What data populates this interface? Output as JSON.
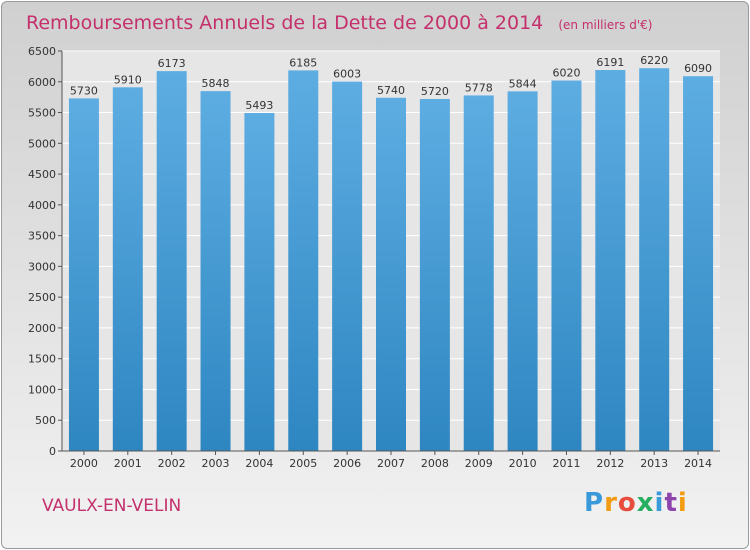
{
  "chart_data": {
    "type": "bar",
    "title": "Remboursements Annuels de la Dette de 2000 à 2014",
    "subtitle": "(en milliers d'€)",
    "categories": [
      "2000",
      "2001",
      "2002",
      "2003",
      "2004",
      "2005",
      "2006",
      "2007",
      "2008",
      "2009",
      "2010",
      "2011",
      "2012",
      "2013",
      "2014"
    ],
    "values": [
      5730,
      5910,
      6173,
      5848,
      5493,
      6185,
      6003,
      5740,
      5720,
      5778,
      5844,
      6020,
      6191,
      6220,
      6090
    ],
    "ylim": [
      0,
      6500
    ],
    "yticks": [
      0,
      500,
      1000,
      1500,
      2000,
      2500,
      3000,
      3500,
      4000,
      4500,
      5000,
      5500,
      6000,
      6500
    ],
    "xlabel": "",
    "ylabel": "",
    "grid": true,
    "bar_color_top": "#5dade2",
    "bar_color_bottom": "#2e86c1"
  },
  "place_name": "VAULX-EN-VELIN",
  "logo": {
    "letters": [
      "P",
      "r",
      "o",
      "x",
      "i",
      "t",
      "i"
    ],
    "colors": [
      "#3a9ad9",
      "#f39c12",
      "#e74c3c",
      "#27ae60",
      "#3a9ad9",
      "#8e44ad",
      "#f39c12"
    ]
  }
}
